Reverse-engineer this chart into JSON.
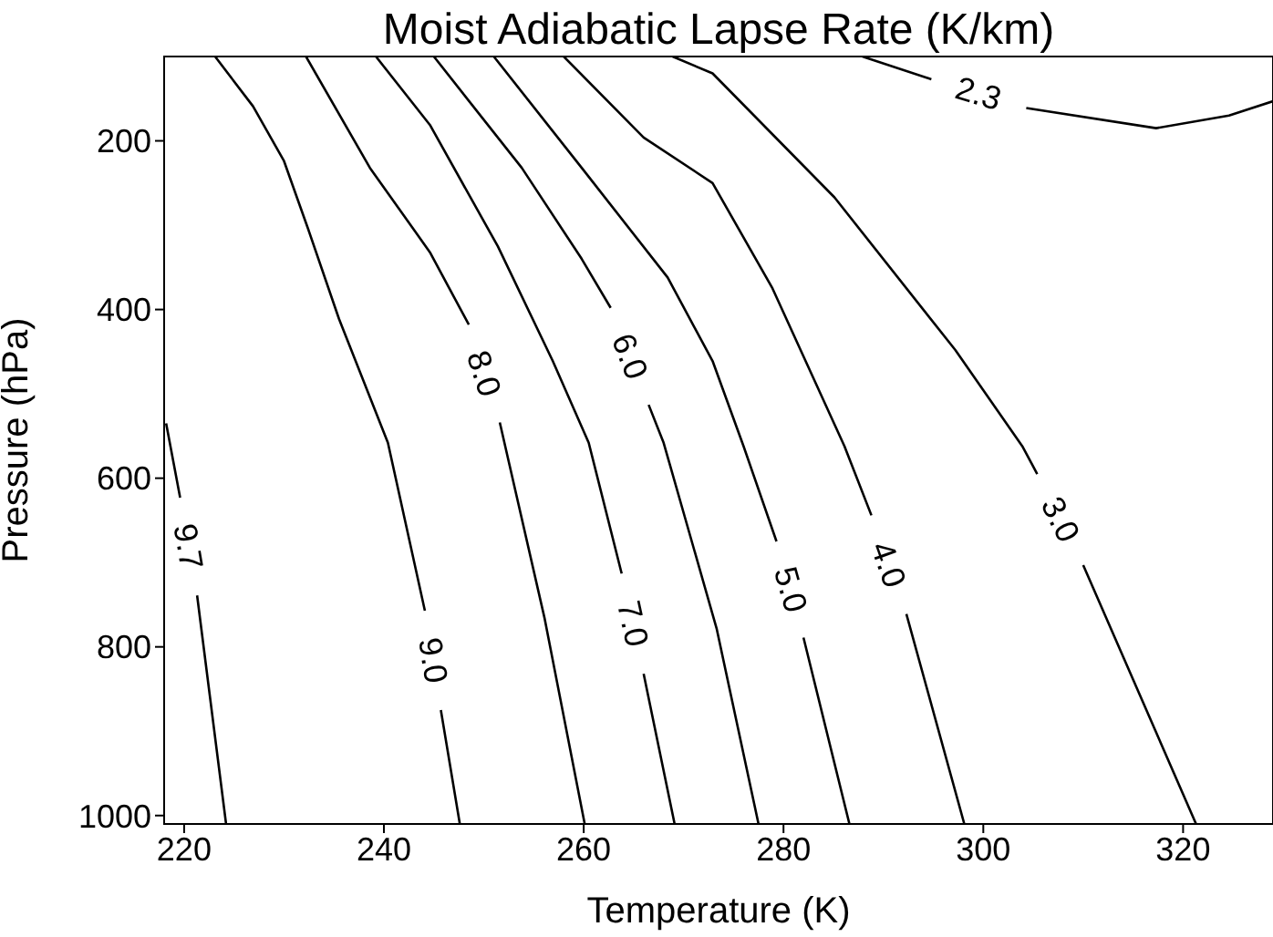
{
  "chart_data": {
    "type": "line",
    "title": "Moist Adiabatic Lapse Rate (K/km)",
    "xlabel": "Temperature (K)",
    "ylabel": "Pressure (hPa)",
    "xlim": [
      218,
      329
    ],
    "ylim": [
      1010,
      100
    ],
    "xticks": [
      220,
      240,
      260,
      280,
      300,
      320
    ],
    "yticks": [
      200,
      400,
      600,
      800,
      1000
    ],
    "grid": false,
    "marker": "none",
    "line_style": "solid",
    "series": [
      {
        "name": "9.7",
        "color": "#000000",
        "x": [
          218.2,
          219.6,
          220.4,
          221.3,
          224.2
        ],
        "values": [
          535,
          623,
          null,
          739,
          1010
        ]
      },
      {
        "name": "9.0",
        "color": "#000000",
        "x": [
          223.1,
          226.9,
          230.0,
          232.4,
          235.5,
          240.4,
          244.1,
          244.9,
          245.7,
          247.6
        ],
        "values": [
          100,
          159,
          224,
          304,
          411,
          558,
          757,
          null,
          875,
          1010
        ]
      },
      {
        "name": "8.0",
        "color": "#000000",
        "x": [
          232.2,
          238.6,
          244.6,
          248.5,
          250.0,
          251.6,
          256.1,
          260.1
        ],
        "values": [
          100,
          232,
          332,
          418,
          null,
          534,
          767,
          1010
        ]
      },
      {
        "name": "7.0",
        "color": "#000000",
        "x": [
          239.2,
          244.6,
          251.4,
          256.9,
          260.5,
          263.8,
          264.9,
          266.0,
          269.1
        ],
        "values": [
          100,
          181,
          325,
          461,
          558,
          713,
          null,
          832,
          1010
        ]
      },
      {
        "name": "6.0",
        "color": "#000000",
        "x": [
          245.0,
          253.8,
          259.8,
          262.7,
          264.6,
          266.5,
          268.0,
          273.3,
          277.5
        ],
        "values": [
          100,
          232,
          340,
          398,
          null,
          513,
          558,
          778,
          1010
        ]
      },
      {
        "name": "5.0",
        "color": "#000000",
        "x": [
          251.0,
          259.8,
          268.4,
          272.9,
          276.0,
          279.3,
          280.7,
          282.0,
          286.6
        ],
        "values": [
          100,
          232,
          362,
          461,
          562,
          675,
          null,
          789,
          1010
        ]
      },
      {
        "name": "4.0",
        "color": "#000000",
        "x": [
          258.0,
          266.0,
          272.9,
          278.9,
          286.1,
          288.8,
          290.5,
          292.3,
          298.1
        ],
        "values": [
          100,
          196,
          250,
          375,
          562,
          644,
          null,
          761,
          1010
        ]
      },
      {
        "name": "3.0",
        "color": "#000000",
        "x": [
          268.9,
          272.9,
          285.1,
          297.2,
          303.9,
          305.4,
          307.7,
          310.0,
          321.3
        ],
        "values": [
          100,
          120,
          267,
          448,
          562,
          595,
          null,
          703,
          1010
        ]
      },
      {
        "name": "2.3",
        "color": "#000000",
        "x": [
          287.9,
          294.8,
          299.5,
          304.3,
          317.3,
          324.6,
          329.0
        ],
        "values": [
          100,
          127,
          null,
          161,
          185,
          170,
          153
        ]
      }
    ]
  }
}
